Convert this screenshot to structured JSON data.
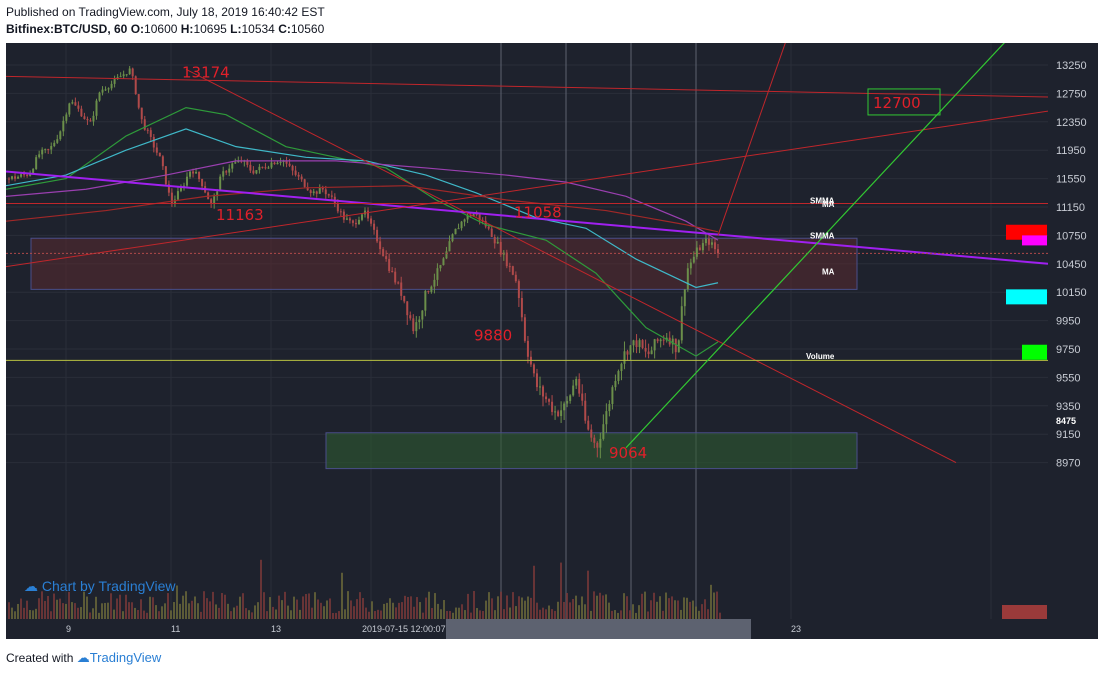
{
  "header": {
    "published": "Published on TradingView.com, July 18, 2019 16:40:42 EST",
    "symbol": "Bitfinex:BTC/USD, 60",
    "o_label": "O:",
    "o_value": "10600",
    "h_label": "H:",
    "h_value": "10695",
    "l_label": "L:",
    "l_value": "10534",
    "c_label": "C:",
    "c_value": "10560"
  },
  "footer": {
    "created_with": "Created with",
    "brand": "TradingView"
  },
  "watermark": "Chart by TradingView",
  "colors": {
    "background": "#1e222d",
    "candle_up": "#6b8f4a",
    "candle_down": "#b04a4a",
    "purple_trend": "#a020f0",
    "red_line": "#c0262b",
    "green_line": "#32c832",
    "cyan_ma": "#3fb8c8",
    "green_ma": "#2e9a3a",
    "purple_ma": "#9a3fb0",
    "darkred_ma": "#a02828",
    "label_red": "#e0202a"
  },
  "chart_data": {
    "type": "candlestick",
    "symbol": "Bitfinex:BTC/USD",
    "interval": "60",
    "ohlc_last": {
      "open": 10600,
      "high": 10695,
      "low": 10534,
      "close": 10560
    },
    "y_ticks": [
      13250,
      12750,
      12350,
      11950,
      11550,
      11150,
      10750,
      10450,
      10150,
      9950,
      9750,
      9550,
      9350,
      9150,
      8970
    ],
    "x_ticks": [
      "9",
      "11",
      "13",
      "2019-07-15 12:00:07",
      "23"
    ],
    "extra_scale_label": "8475",
    "annotations": [
      {
        "text": "13174",
        "price": 13174
      },
      {
        "text": "11163",
        "price": 11163
      },
      {
        "text": "11058",
        "price": 11058
      },
      {
        "text": "9880",
        "price": 9880
      },
      {
        "text": "9064",
        "price": 9064
      },
      {
        "text": "12700",
        "price": 12700
      }
    ],
    "indicator_labels": [
      {
        "text": "SMMA",
        "price": 11240
      },
      {
        "text": "MA",
        "price": 11190
      },
      {
        "text": "SMMA",
        "price": 10750
      },
      {
        "text": "MA",
        "price": 10370
      },
      {
        "text": "Volume",
        "price": 9700
      }
    ],
    "zones": [
      {
        "name": "resistance-zone",
        "from": 10180,
        "to": 10720
      },
      {
        "name": "support-zone",
        "from": 8970,
        "to": 9160
      }
    ],
    "price_path": [
      11550,
      11580,
      11620,
      11900,
      11950,
      12200,
      12650,
      12500,
      12300,
      12800,
      12900,
      13050,
      13174,
      12400,
      12100,
      11800,
      11200,
      11400,
      11700,
      11500,
      11163,
      11600,
      11750,
      11800,
      11650,
      11700,
      11780,
      11820,
      11650,
      11500,
      11350,
      11400,
      11250,
      11000,
      10900,
      11100,
      10800,
      10550,
      10300,
      10100,
      9880,
      10100,
      10300,
      10500,
      10800,
      11000,
      11058,
      10900,
      10700,
      10500,
      10300,
      9800,
      9500,
      9400,
      9300,
      9350,
      9550,
      9200,
      9064,
      9300,
      9600,
      9750,
      9800,
      9700,
      9800,
      9850,
      9750,
      10400,
      10600,
      10700,
      10560
    ]
  }
}
